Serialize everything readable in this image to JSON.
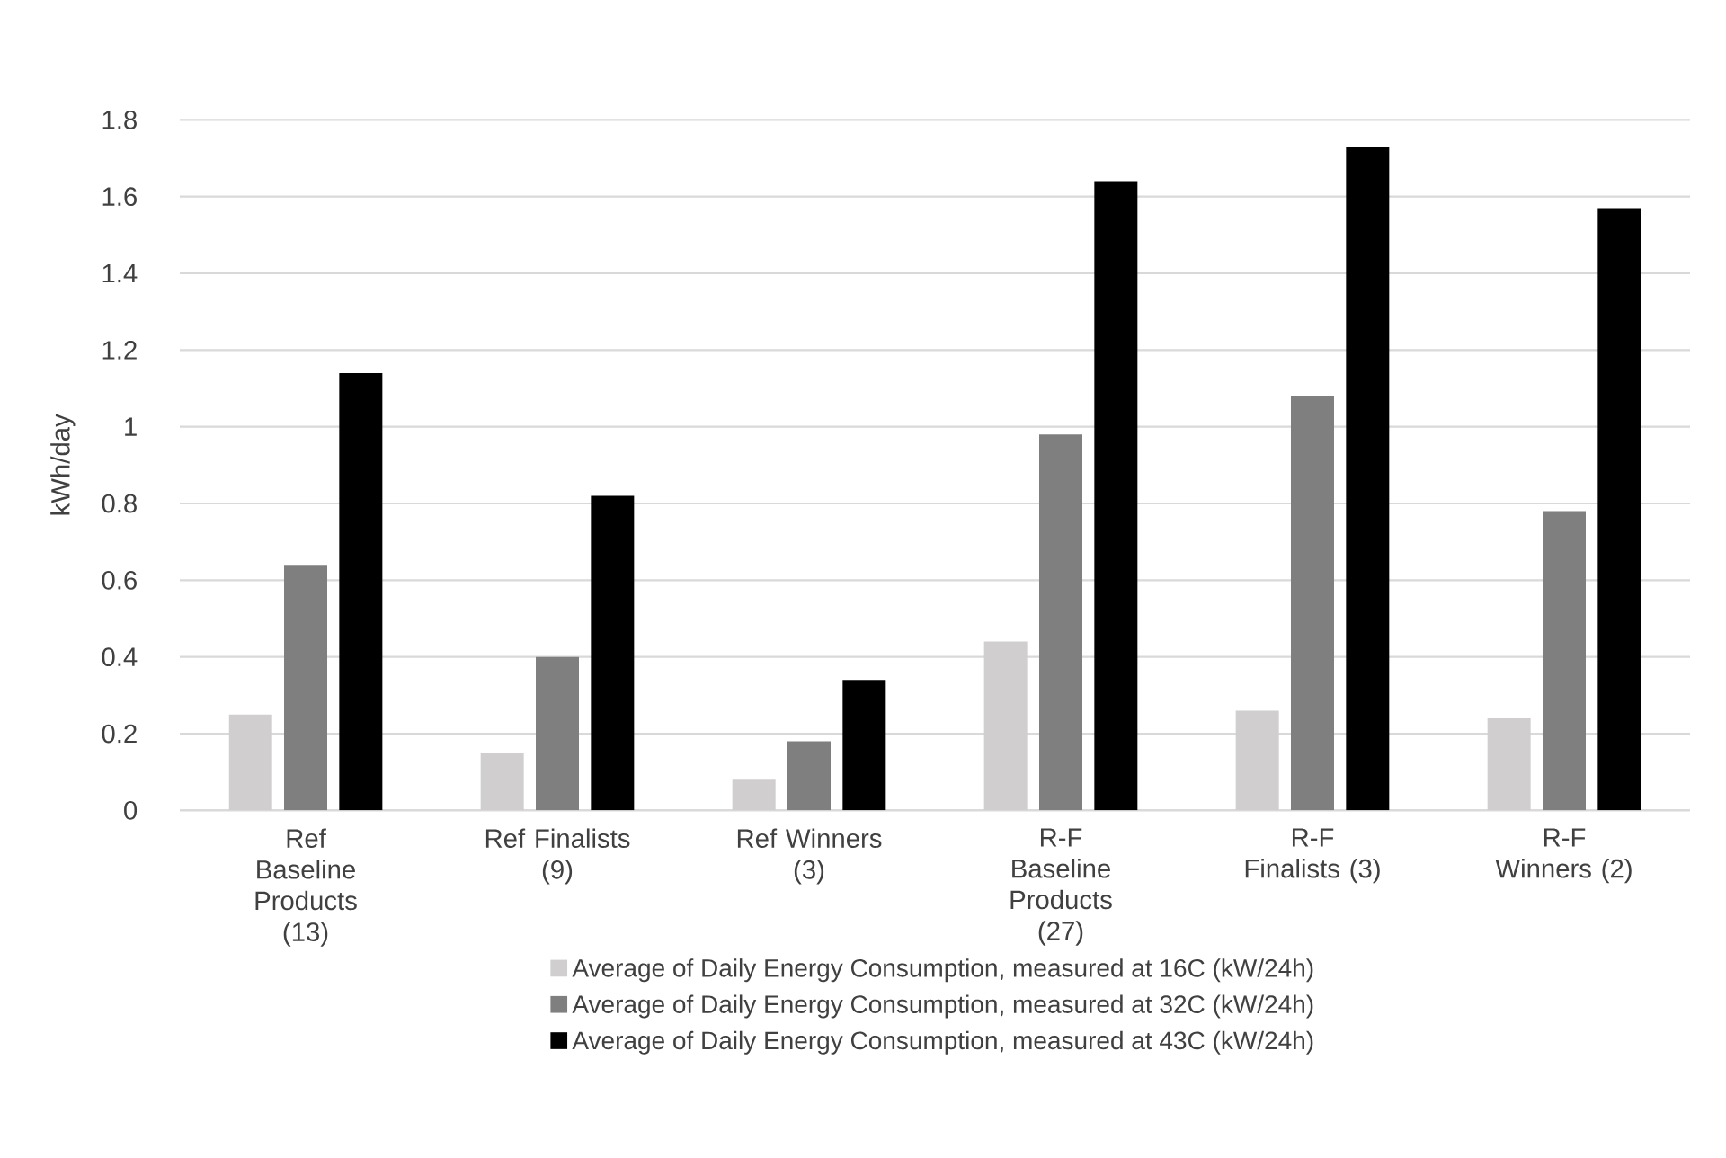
{
  "chart_data": {
    "type": "bar",
    "ylabel": "kWh/day",
    "categories": [
      "Ref Baseline Products (13)",
      "Ref Finalists (9)",
      "Ref Winners (3)",
      "R-F Baseline Products (27)",
      "R-F Finalists (3)",
      "R-F Winners (2)"
    ],
    "series": [
      {
        "name": "Average of Daily Energy Consumption, measured at 16C (kW/24h)",
        "color": "#d0cece",
        "values": [
          0.25,
          0.15,
          0.08,
          0.44,
          0.26,
          0.24
        ]
      },
      {
        "name": "Average of Daily Energy Consumption, measured at 32C (kW/24h)",
        "color": "#7f7f7f",
        "values": [
          0.64,
          0.4,
          0.18,
          0.98,
          1.08,
          0.78
        ]
      },
      {
        "name": "Average of Daily Energy Consumption, measured at 43C (kW/24h)",
        "color": "#000000",
        "values": [
          1.14,
          0.82,
          0.34,
          1.64,
          1.73,
          1.57
        ]
      }
    ],
    "ylim": [
      0,
      1.8
    ],
    "yticks": [
      0,
      0.2,
      0.4,
      0.6,
      0.8,
      1,
      1.2,
      1.4,
      1.6,
      1.8
    ],
    "grid": "y",
    "legend": "bottom"
  }
}
